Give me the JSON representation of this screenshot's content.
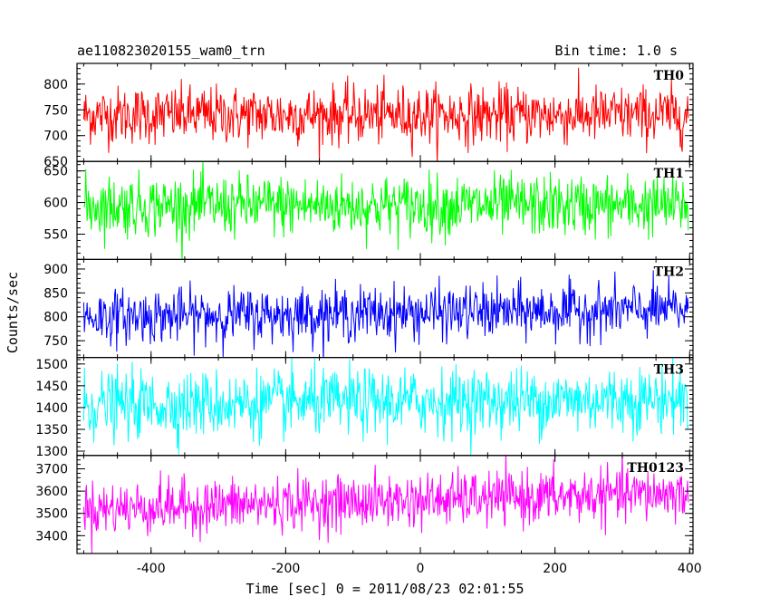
{
  "header": {
    "title": "ae110823020155_wam0_trn",
    "bin_time": "Bin time: 1.0 s"
  },
  "chart_data": {
    "type": "line",
    "xlabel": "Time [sec] 0 = 2011/08/23 02:01:55",
    "ylabel": "Counts/sec",
    "xlim": [
      -510,
      405
    ],
    "x_ticks": [
      "-400",
      "-200",
      "0",
      "200",
      "400"
    ],
    "x_tick_values": [
      -400,
      -200,
      0,
      200,
      400
    ],
    "x_start": -500,
    "x_end": 398,
    "x_step": 1,
    "panels": [
      {
        "name": "TH0",
        "color": "#ff0000",
        "ylim": [
          650,
          840
        ],
        "y_ticks": [
          "650",
          "700",
          "750",
          "800"
        ],
        "y_tick_values": [
          650,
          700,
          750,
          800
        ],
        "mean": 740,
        "sigma": 28,
        "trend": 0
      },
      {
        "name": "TH1",
        "color": "#00ff00",
        "ylim": [
          510,
          665
        ],
        "y_ticks": [
          "550",
          "600",
          "650"
        ],
        "y_tick_values": [
          550,
          600,
          650
        ],
        "mean": 595,
        "sigma": 24,
        "trend": 0
      },
      {
        "name": "TH2",
        "color": "#0000ff",
        "ylim": [
          715,
          920
        ],
        "y_ticks": [
          "750",
          "800",
          "850",
          "900"
        ],
        "y_tick_values": [
          750,
          800,
          850,
          900
        ],
        "mean": 800,
        "sigma": 28,
        "trend": 15
      },
      {
        "name": "TH3",
        "color": "#00ffff",
        "ylim": [
          1290,
          1515
        ],
        "y_ticks": [
          "1300",
          "1350",
          "1400",
          "1450",
          "1500"
        ],
        "y_tick_values": [
          1300,
          1350,
          1400,
          1450,
          1500
        ],
        "mean": 1405,
        "sigma": 38,
        "trend": 15
      },
      {
        "name": "TH0123",
        "color": "#ff00ff",
        "ylim": [
          3320,
          3760
        ],
        "y_ticks": [
          "3400",
          "3500",
          "3600",
          "3700"
        ],
        "y_tick_values": [
          3400,
          3500,
          3600,
          3700
        ],
        "mean": 3520,
        "sigma": 60,
        "trend": 70
      }
    ]
  }
}
